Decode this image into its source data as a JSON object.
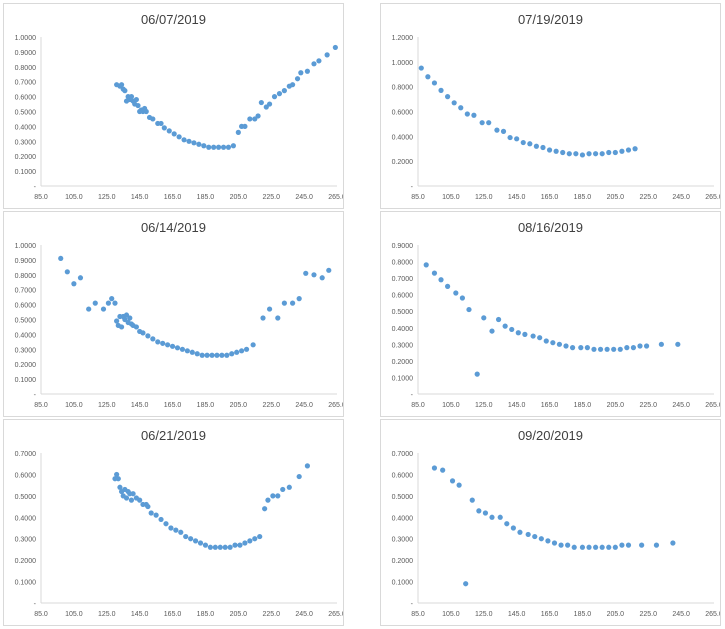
{
  "colors": {
    "marker": "#5b9bd5",
    "axis_text": "#595959",
    "title": "#404040",
    "axis_line": "#d9d9d9"
  },
  "chart_data": [
    {
      "type": "scatter",
      "title": "06/07/2019",
      "xlim": [
        85,
        265
      ],
      "ylim": [
        0,
        1.0
      ],
      "x_ticks": [
        "85.0",
        "105.0",
        "125.0",
        "145.0",
        "165.0",
        "185.0",
        "205.0",
        "225.0",
        "245.0",
        "265.0"
      ],
      "y_ticks": [
        "-",
        "0.1000",
        "0.2000",
        "0.3000",
        "0.4000",
        "0.5000",
        "0.6000",
        "0.7000",
        "0.8000",
        "0.9000",
        "1.0000"
      ],
      "points": [
        [
          131,
          0.68
        ],
        [
          133,
          0.67
        ],
        [
          134,
          0.68
        ],
        [
          135,
          0.65
        ],
        [
          136,
          0.64
        ],
        [
          137,
          0.57
        ],
        [
          138,
          0.6
        ],
        [
          139,
          0.58
        ],
        [
          140,
          0.6
        ],
        [
          141,
          0.57
        ],
        [
          142,
          0.55
        ],
        [
          143,
          0.58
        ],
        [
          144,
          0.54
        ],
        [
          145,
          0.5
        ],
        [
          146,
          0.51
        ],
        [
          147,
          0.5
        ],
        [
          148,
          0.52
        ],
        [
          149,
          0.5
        ],
        [
          151,
          0.46
        ],
        [
          153,
          0.45
        ],
        [
          156,
          0.42
        ],
        [
          158,
          0.42
        ],
        [
          160,
          0.39
        ],
        [
          163,
          0.37
        ],
        [
          166,
          0.35
        ],
        [
          169,
          0.33
        ],
        [
          172,
          0.31
        ],
        [
          175,
          0.3
        ],
        [
          178,
          0.29
        ],
        [
          181,
          0.28
        ],
        [
          184,
          0.27
        ],
        [
          187,
          0.26
        ],
        [
          190,
          0.26
        ],
        [
          193,
          0.26
        ],
        [
          196,
          0.26
        ],
        [
          199,
          0.26
        ],
        [
          202,
          0.27
        ],
        [
          205,
          0.36
        ],
        [
          207,
          0.4
        ],
        [
          209,
          0.4
        ],
        [
          212,
          0.45
        ],
        [
          215,
          0.45
        ],
        [
          217,
          0.47
        ],
        [
          219,
          0.56
        ],
        [
          222,
          0.53
        ],
        [
          224,
          0.55
        ],
        [
          227,
          0.6
        ],
        [
          230,
          0.62
        ],
        [
          233,
          0.64
        ],
        [
          236,
          0.67
        ],
        [
          238,
          0.68
        ],
        [
          241,
          0.72
        ],
        [
          243,
          0.76
        ],
        [
          247,
          0.77
        ],
        [
          251,
          0.82
        ],
        [
          254,
          0.84
        ],
        [
          259,
          0.88
        ],
        [
          264,
          0.93
        ]
      ]
    },
    {
      "type": "scatter",
      "title": "07/19/2019",
      "xlim": [
        85,
        265
      ],
      "ylim": [
        0,
        1.2
      ],
      "x_ticks": [
        "85.0",
        "105.0",
        "125.0",
        "145.0",
        "165.0",
        "185.0",
        "205.0",
        "225.0",
        "245.0",
        "265.0"
      ],
      "y_ticks": [
        "-",
        "0.2000",
        "0.4000",
        "0.6000",
        "0.8000",
        "1.0000",
        "1.2000"
      ],
      "points": [
        [
          87,
          0.95
        ],
        [
          91,
          0.88
        ],
        [
          95,
          0.83
        ],
        [
          99,
          0.77
        ],
        [
          103,
          0.72
        ],
        [
          107,
          0.67
        ],
        [
          111,
          0.63
        ],
        [
          115,
          0.58
        ],
        [
          119,
          0.57
        ],
        [
          124,
          0.51
        ],
        [
          128,
          0.51
        ],
        [
          133,
          0.45
        ],
        [
          137,
          0.44
        ],
        [
          141,
          0.39
        ],
        [
          145,
          0.38
        ],
        [
          149,
          0.35
        ],
        [
          153,
          0.34
        ],
        [
          157,
          0.32
        ],
        [
          161,
          0.31
        ],
        [
          165,
          0.29
        ],
        [
          169,
          0.28
        ],
        [
          173,
          0.27
        ],
        [
          177,
          0.26
        ],
        [
          181,
          0.26
        ],
        [
          185,
          0.25
        ],
        [
          189,
          0.26
        ],
        [
          193,
          0.26
        ],
        [
          197,
          0.26
        ],
        [
          201,
          0.27
        ],
        [
          205,
          0.27
        ],
        [
          209,
          0.28
        ],
        [
          213,
          0.29
        ],
        [
          217,
          0.3
        ]
      ]
    },
    {
      "type": "scatter",
      "title": "06/14/2019",
      "xlim": [
        85,
        265
      ],
      "ylim": [
        0,
        1.0
      ],
      "x_ticks": [
        "85.0",
        "105.0",
        "125.0",
        "145.0",
        "165.0",
        "185.0",
        "205.0",
        "225.0",
        "245.0",
        "265.0"
      ],
      "y_ticks": [
        "-",
        "0.1000",
        "0.2000",
        "0.3000",
        "0.4000",
        "0.5000",
        "0.6000",
        "0.7000",
        "0.8000",
        "0.9000",
        "1.0000"
      ],
      "points": [
        [
          97,
          0.91
        ],
        [
          101,
          0.82
        ],
        [
          105,
          0.74
        ],
        [
          109,
          0.78
        ],
        [
          114,
          0.57
        ],
        [
          118,
          0.61
        ],
        [
          123,
          0.57
        ],
        [
          126,
          0.61
        ],
        [
          128,
          0.64
        ],
        [
          130,
          0.61
        ],
        [
          131,
          0.49
        ],
        [
          132,
          0.46
        ],
        [
          133,
          0.52
        ],
        [
          134,
          0.45
        ],
        [
          135,
          0.52
        ],
        [
          136,
          0.5
        ],
        [
          137,
          0.53
        ],
        [
          138,
          0.48
        ],
        [
          139,
          0.51
        ],
        [
          140,
          0.47
        ],
        [
          141,
          0.46
        ],
        [
          143,
          0.45
        ],
        [
          145,
          0.42
        ],
        [
          147,
          0.41
        ],
        [
          150,
          0.39
        ],
        [
          153,
          0.37
        ],
        [
          156,
          0.35
        ],
        [
          159,
          0.34
        ],
        [
          162,
          0.33
        ],
        [
          165,
          0.32
        ],
        [
          168,
          0.31
        ],
        [
          171,
          0.3
        ],
        [
          174,
          0.29
        ],
        [
          177,
          0.28
        ],
        [
          180,
          0.27
        ],
        [
          183,
          0.26
        ],
        [
          186,
          0.26
        ],
        [
          189,
          0.26
        ],
        [
          192,
          0.26
        ],
        [
          195,
          0.26
        ],
        [
          198,
          0.26
        ],
        [
          201,
          0.27
        ],
        [
          204,
          0.28
        ],
        [
          207,
          0.29
        ],
        [
          210,
          0.3
        ],
        [
          214,
          0.33
        ],
        [
          220,
          0.51
        ],
        [
          224,
          0.57
        ],
        [
          229,
          0.51
        ],
        [
          233,
          0.61
        ],
        [
          238,
          0.61
        ],
        [
          242,
          0.64
        ],
        [
          246,
          0.81
        ],
        [
          251,
          0.8
        ],
        [
          256,
          0.78
        ],
        [
          260,
          0.83
        ]
      ]
    },
    {
      "type": "scatter",
      "title": "08/16/2019",
      "xlim": [
        85,
        265
      ],
      "ylim": [
        0,
        0.9
      ],
      "x_ticks": [
        "85.0",
        "105.0",
        "125.0",
        "145.0",
        "165.0",
        "185.0",
        "205.0",
        "225.0",
        "245.0",
        "265.0"
      ],
      "y_ticks": [
        "-",
        "0.1000",
        "0.2000",
        "0.3000",
        "0.4000",
        "0.5000",
        "0.6000",
        "0.7000",
        "0.8000",
        "0.9000"
      ],
      "points": [
        [
          90,
          0.78
        ],
        [
          95,
          0.73
        ],
        [
          99,
          0.69
        ],
        [
          103,
          0.65
        ],
        [
          108,
          0.61
        ],
        [
          112,
          0.58
        ],
        [
          116,
          0.51
        ],
        [
          121,
          0.12
        ],
        [
          125,
          0.46
        ],
        [
          130,
          0.38
        ],
        [
          134,
          0.45
        ],
        [
          138,
          0.41
        ],
        [
          142,
          0.39
        ],
        [
          146,
          0.37
        ],
        [
          150,
          0.36
        ],
        [
          155,
          0.35
        ],
        [
          159,
          0.34
        ],
        [
          163,
          0.32
        ],
        [
          167,
          0.31
        ],
        [
          171,
          0.3
        ],
        [
          175,
          0.29
        ],
        [
          179,
          0.28
        ],
        [
          184,
          0.28
        ],
        [
          188,
          0.28
        ],
        [
          192,
          0.27
        ],
        [
          196,
          0.27
        ],
        [
          200,
          0.27
        ],
        [
          204,
          0.27
        ],
        [
          208,
          0.27
        ],
        [
          212,
          0.28
        ],
        [
          216,
          0.28
        ],
        [
          220,
          0.29
        ],
        [
          224,
          0.29
        ],
        [
          233,
          0.3
        ],
        [
          243,
          0.3
        ]
      ]
    },
    {
      "type": "scatter",
      "title": "06/21/2019",
      "xlim": [
        85,
        265
      ],
      "ylim": [
        0,
        0.7
      ],
      "x_ticks": [
        "85.0",
        "105.0",
        "125.0",
        "145.0",
        "165.0",
        "185.0",
        "205.0",
        "225.0",
        "245.0",
        "265.0"
      ],
      "y_ticks": [
        "-",
        "0.1000",
        "0.2000",
        "0.3000",
        "0.4000",
        "0.5000",
        "0.6000",
        "0.7000"
      ],
      "points": [
        [
          130,
          0.58
        ],
        [
          131,
          0.6
        ],
        [
          132,
          0.58
        ],
        [
          133,
          0.54
        ],
        [
          134,
          0.52
        ],
        [
          135,
          0.5
        ],
        [
          136,
          0.53
        ],
        [
          137,
          0.49
        ],
        [
          138,
          0.52
        ],
        [
          139,
          0.51
        ],
        [
          140,
          0.48
        ],
        [
          141,
          0.51
        ],
        [
          143,
          0.49
        ],
        [
          145,
          0.48
        ],
        [
          147,
          0.46
        ],
        [
          149,
          0.46
        ],
        [
          150,
          0.45
        ],
        [
          152,
          0.42
        ],
        [
          155,
          0.41
        ],
        [
          158,
          0.39
        ],
        [
          161,
          0.37
        ],
        [
          164,
          0.35
        ],
        [
          167,
          0.34
        ],
        [
          170,
          0.33
        ],
        [
          173,
          0.31
        ],
        [
          176,
          0.3
        ],
        [
          179,
          0.29
        ],
        [
          182,
          0.28
        ],
        [
          185,
          0.27
        ],
        [
          188,
          0.26
        ],
        [
          191,
          0.26
        ],
        [
          194,
          0.26
        ],
        [
          197,
          0.26
        ],
        [
          200,
          0.26
        ],
        [
          203,
          0.27
        ],
        [
          206,
          0.27
        ],
        [
          209,
          0.28
        ],
        [
          212,
          0.29
        ],
        [
          215,
          0.3
        ],
        [
          218,
          0.31
        ],
        [
          221,
          0.44
        ],
        [
          223,
          0.48
        ],
        [
          226,
          0.5
        ],
        [
          229,
          0.5
        ],
        [
          232,
          0.53
        ],
        [
          236,
          0.54
        ],
        [
          242,
          0.59
        ],
        [
          247,
          0.64
        ]
      ]
    },
    {
      "type": "scatter",
      "title": "09/20/2019",
      "xlim": [
        85,
        265
      ],
      "ylim": [
        0,
        0.7
      ],
      "x_ticks": [
        "85.0",
        "105.0",
        "125.0",
        "145.0",
        "165.0",
        "185.0",
        "205.0",
        "225.0",
        "245.0",
        "265.0"
      ],
      "y_ticks": [
        "-",
        "0.1000",
        "0.2000",
        "0.3000",
        "0.4000",
        "0.5000",
        "0.6000",
        "0.7000"
      ],
      "points": [
        [
          95,
          0.63
        ],
        [
          100,
          0.62
        ],
        [
          106,
          0.57
        ],
        [
          110,
          0.55
        ],
        [
          114,
          0.09
        ],
        [
          118,
          0.48
        ],
        [
          122,
          0.43
        ],
        [
          126,
          0.42
        ],
        [
          130,
          0.4
        ],
        [
          135,
          0.4
        ],
        [
          139,
          0.37
        ],
        [
          143,
          0.35
        ],
        [
          147,
          0.33
        ],
        [
          152,
          0.32
        ],
        [
          156,
          0.31
        ],
        [
          160,
          0.3
        ],
        [
          164,
          0.29
        ],
        [
          168,
          0.28
        ],
        [
          172,
          0.27
        ],
        [
          176,
          0.27
        ],
        [
          180,
          0.26
        ],
        [
          185,
          0.26
        ],
        [
          189,
          0.26
        ],
        [
          193,
          0.26
        ],
        [
          197,
          0.26
        ],
        [
          201,
          0.26
        ],
        [
          205,
          0.26
        ],
        [
          209,
          0.27
        ],
        [
          213,
          0.27
        ],
        [
          221,
          0.27
        ],
        [
          230,
          0.27
        ],
        [
          240,
          0.28
        ]
      ]
    }
  ]
}
